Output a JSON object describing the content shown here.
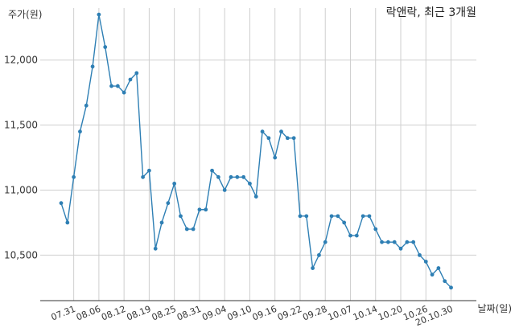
{
  "chart_data": {
    "type": "line",
    "title": "락앤락, 최근 3개월",
    "ylabel": "주가(원)",
    "xlabel": "날짜(일)",
    "grid": true,
    "ylim": [
      10150,
      12400
    ],
    "yticks": [
      10500,
      11000,
      11500,
      12000
    ],
    "ytick_labels": [
      "10,500",
      "11,000",
      "11,500",
      "12,000"
    ],
    "xtick_labels": [
      "07.31",
      "08.06",
      "08.12",
      "08.19",
      "08.25",
      "08.31",
      "09.04",
      "09.10",
      "09.16",
      "09.22",
      "09.28",
      "10.07",
      "10.14",
      "10.20",
      "10.26",
      "20.10.30"
    ],
    "xtick_positions": [
      2,
      6,
      10,
      14,
      18,
      22,
      26,
      30,
      34,
      38,
      42,
      46,
      50,
      54,
      58,
      62
    ],
    "color": "#2e7fb4",
    "values": [
      10900,
      10750,
      11100,
      11450,
      11650,
      11950,
      12350,
      12100,
      11800,
      11800,
      11750,
      11850,
      11900,
      11100,
      11150,
      10550,
      10750,
      10900,
      11050,
      10800,
      10700,
      10700,
      10850,
      10850,
      11150,
      11100,
      11000,
      11100,
      11100,
      11100,
      11050,
      10950,
      11450,
      11400,
      11250,
      11450,
      11400,
      11400,
      10800,
      10800,
      10400,
      10500,
      10600,
      10800,
      10800,
      10750,
      10650,
      10650,
      10800,
      10800,
      10700,
      10600,
      10600,
      10600,
      10550,
      10600,
      10600,
      10500,
      10450,
      10350,
      10400,
      10300,
      10250
    ]
  }
}
